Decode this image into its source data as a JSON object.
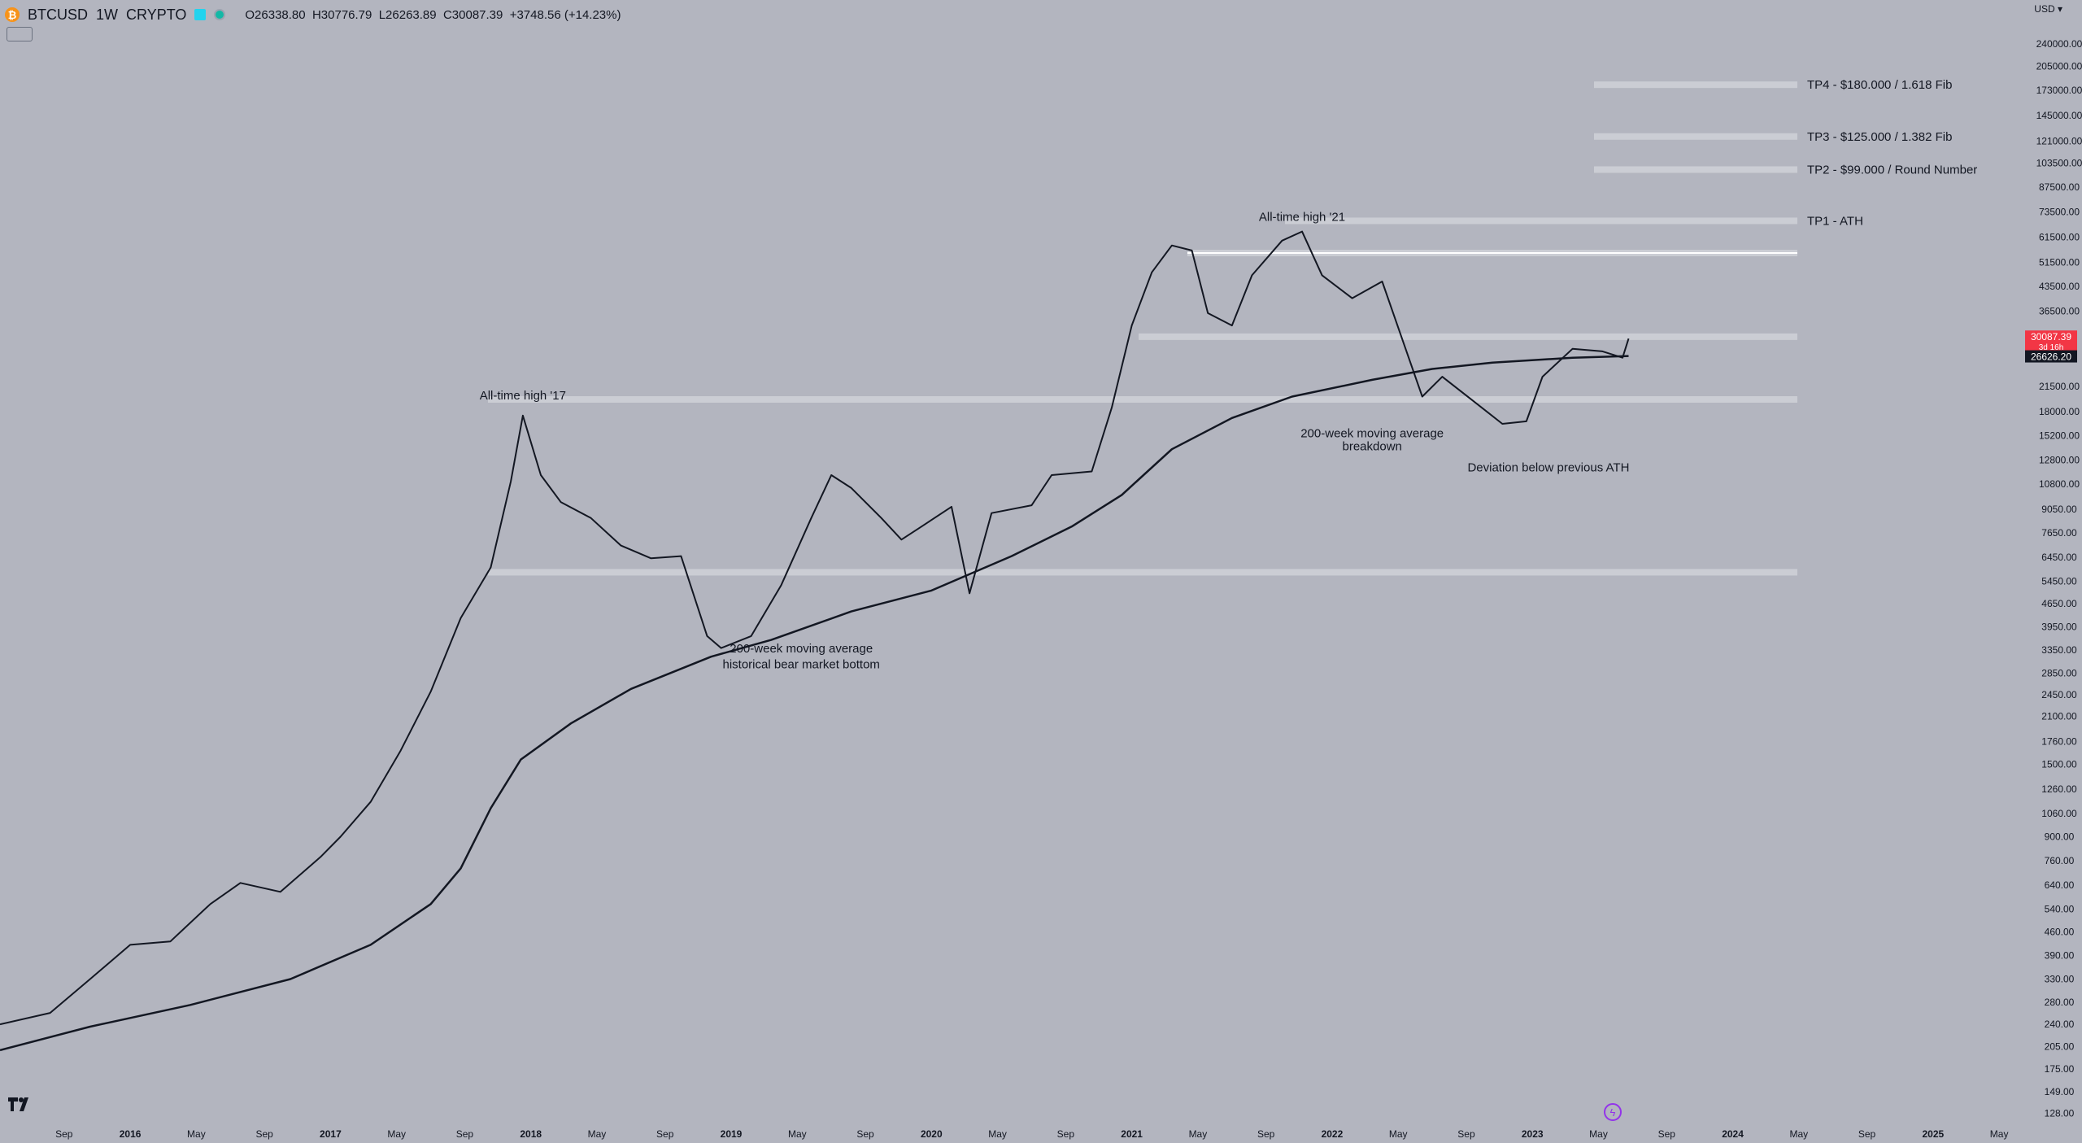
{
  "header": {
    "symbol": "BTCUSD",
    "interval": "1W",
    "exchange": "CRYPTO",
    "open": "O26338.80",
    "high": "H30776.79",
    "low": "L26263.89",
    "close": "C30087.39",
    "change": "+3748.56 (+14.23%)"
  },
  "currency": "USD",
  "price_axis": {
    "ticks": [
      240000,
      205000,
      173000,
      145000,
      121000,
      103500,
      87500,
      73500,
      61500,
      51500,
      43500,
      36500,
      21500,
      18000,
      15200,
      12800,
      10800,
      9050,
      7650,
      6450,
      5450,
      4650,
      3950,
      3350,
      2850,
      2450,
      2100,
      1760,
      1500,
      1260,
      1060,
      900,
      760,
      640,
      540,
      460,
      390,
      330,
      280,
      240,
      205,
      175,
      149,
      128
    ],
    "last_price": "30087.39",
    "countdown": "3d 16h",
    "ma_value": "26626.20"
  },
  "time_axis": [
    {
      "label": "Sep",
      "date": 2015.67
    },
    {
      "label": "2016",
      "date": 2016.0
    },
    {
      "label": "May",
      "date": 2016.33
    },
    {
      "label": "Sep",
      "date": 2016.67
    },
    {
      "label": "2017",
      "date": 2017.0
    },
    {
      "label": "May",
      "date": 2017.33
    },
    {
      "label": "Sep",
      "date": 2017.67
    },
    {
      "label": "2018",
      "date": 2018.0
    },
    {
      "label": "May",
      "date": 2018.33
    },
    {
      "label": "Sep",
      "date": 2018.67
    },
    {
      "label": "2019",
      "date": 2019.0
    },
    {
      "label": "May",
      "date": 2019.33
    },
    {
      "label": "Sep",
      "date": 2019.67
    },
    {
      "label": "2020",
      "date": 2020.0
    },
    {
      "label": "May",
      "date": 2020.33
    },
    {
      "label": "Sep",
      "date": 2020.67
    },
    {
      "label": "2021",
      "date": 2021.0
    },
    {
      "label": "May",
      "date": 2021.33
    },
    {
      "label": "Sep",
      "date": 2021.67
    },
    {
      "label": "2022",
      "date": 2022.0
    },
    {
      "label": "May",
      "date": 2022.33
    },
    {
      "label": "Sep",
      "date": 2022.67
    },
    {
      "label": "2023",
      "date": 2023.0
    },
    {
      "label": "May",
      "date": 2023.33
    },
    {
      "label": "Sep",
      "date": 2023.67
    },
    {
      "label": "2024",
      "date": 2024.0
    },
    {
      "label": "May",
      "date": 2024.33
    },
    {
      "label": "Sep",
      "date": 2024.67
    },
    {
      "label": "2025",
      "date": 2025.0
    },
    {
      "label": "May",
      "date": 2025.33
    }
  ],
  "chart_data": {
    "type": "line",
    "scale": "log",
    "xlim": [
      2015.35,
      2025.5
    ],
    "ylim": [
      120,
      260000
    ],
    "grid": false,
    "series": [
      {
        "name": "",
        "color": "#131722",
        "values": [
          [
            2015.35,
            240
          ],
          [
            2015.6,
            260
          ],
          [
            2015.8,
            330
          ],
          [
            2016.0,
            420
          ],
          [
            2016.2,
            430
          ],
          [
            2016.4,
            560
          ],
          [
            2016.55,
            650
          ],
          [
            2016.75,
            610
          ],
          [
            2016.95,
            780
          ],
          [
            2017.05,
            900
          ],
          [
            2017.2,
            1150
          ],
          [
            2017.35,
            1650
          ],
          [
            2017.5,
            2500
          ],
          [
            2017.65,
            4200
          ],
          [
            2017.8,
            6000
          ],
          [
            2017.9,
            11000
          ],
          [
            2017.96,
            17500
          ],
          [
            2018.05,
            11500
          ],
          [
            2018.15,
            9500
          ],
          [
            2018.3,
            8500
          ],
          [
            2018.45,
            7000
          ],
          [
            2018.6,
            6400
          ],
          [
            2018.75,
            6500
          ],
          [
            2018.88,
            3700
          ],
          [
            2018.95,
            3400
          ],
          [
            2019.1,
            3700
          ],
          [
            2019.25,
            5300
          ],
          [
            2019.4,
            8500
          ],
          [
            2019.5,
            11500
          ],
          [
            2019.6,
            10500
          ],
          [
            2019.75,
            8500
          ],
          [
            2019.85,
            7300
          ],
          [
            2019.95,
            8000
          ],
          [
            2020.1,
            9200
          ],
          [
            2020.19,
            5000
          ],
          [
            2020.3,
            8800
          ],
          [
            2020.5,
            9300
          ],
          [
            2020.6,
            11500
          ],
          [
            2020.8,
            11800
          ],
          [
            2020.9,
            18500
          ],
          [
            2021.0,
            33000
          ],
          [
            2021.1,
            48000
          ],
          [
            2021.2,
            58000
          ],
          [
            2021.3,
            56000
          ],
          [
            2021.38,
            36000
          ],
          [
            2021.5,
            33000
          ],
          [
            2021.6,
            47000
          ],
          [
            2021.75,
            60000
          ],
          [
            2021.85,
            64000
          ],
          [
            2021.95,
            47000
          ],
          [
            2022.1,
            40000
          ],
          [
            2022.25,
            45000
          ],
          [
            2022.35,
            30000
          ],
          [
            2022.45,
            20000
          ],
          [
            2022.55,
            23000
          ],
          [
            2022.7,
            19500
          ],
          [
            2022.85,
            16500
          ],
          [
            2022.97,
            16800
          ],
          [
            2023.05,
            23000
          ],
          [
            2023.2,
            28000
          ],
          [
            2023.35,
            27500
          ],
          [
            2023.45,
            26300
          ],
          [
            2023.48,
            30087.39
          ]
        ]
      },
      {
        "name": "",
        "color": "#131722",
        "values": [
          [
            2015.35,
            200
          ],
          [
            2015.8,
            236
          ],
          [
            2016.3,
            275
          ],
          [
            2016.8,
            330
          ],
          [
            2017.2,
            420
          ],
          [
            2017.5,
            560
          ],
          [
            2017.65,
            720
          ],
          [
            2017.8,
            1100
          ],
          [
            2017.95,
            1550
          ],
          [
            2018.2,
            2000
          ],
          [
            2018.5,
            2550
          ],
          [
            2018.9,
            3200
          ],
          [
            2019.2,
            3600
          ],
          [
            2019.6,
            4400
          ],
          [
            2020.0,
            5100
          ],
          [
            2020.4,
            6500
          ],
          [
            2020.7,
            8000
          ],
          [
            2020.95,
            10000
          ],
          [
            2021.2,
            13800
          ],
          [
            2021.5,
            17200
          ],
          [
            2021.8,
            20000
          ],
          [
            2022.2,
            22500
          ],
          [
            2022.5,
            24300
          ],
          [
            2022.8,
            25400
          ],
          [
            2023.2,
            26300
          ],
          [
            2023.48,
            26626.2
          ]
        ]
      }
    ],
    "levels": [
      {
        "price": 180000,
        "label": "TP4 - $180.000 / 1.618 Fib"
      },
      {
        "price": 125000,
        "label": "TP3 - $125.000 / 1.382 Fib"
      },
      {
        "price": 99000,
        "label": "TP2 - $99.000 / Round Number"
      },
      {
        "price": 69000,
        "label": "TP1 - ATH"
      },
      {
        "price": 55000,
        "label": ""
      },
      {
        "price": 30500,
        "label": ""
      },
      {
        "price": 19600,
        "label": ""
      },
      {
        "price": 5800,
        "label": ""
      }
    ],
    "annotations": [
      {
        "text": "All-time high '17",
        "date": 2017.96,
        "price": 19600
      },
      {
        "text": "All-time high '21",
        "date": 2021.85,
        "price": 69000
      },
      {
        "text": "200-week moving average",
        "date": 2019.35,
        "price": 3300
      },
      {
        "text": "historical bear market bottom",
        "date": 2019.35,
        "price": 2950
      },
      {
        "text": "200-week moving average",
        "date": 2022.2,
        "price": 15000
      },
      {
        "text": "breakdown",
        "date": 2022.2,
        "price": 13700
      },
      {
        "text": "Deviation below previous ATH",
        "date": 2023.08,
        "price": 11800
      }
    ]
  }
}
